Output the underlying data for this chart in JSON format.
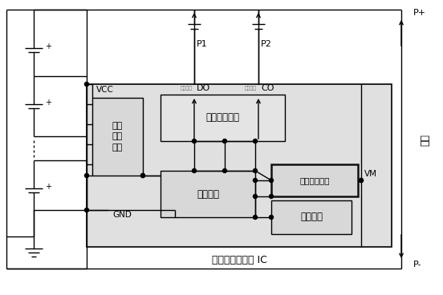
{
  "bg_color": "#ffffff",
  "lc": "#000000",
  "gray_light": "#e0e0e0",
  "gray_mid": "#cccccc",
  "gray_dark": "#555555",
  "title": "多节锂电池保护 IC",
  "lbl_VCC": "VCC",
  "lbl_GND": "GND",
  "lbl_P1": "P1",
  "lbl_P2": "P2",
  "lbl_DO": "DO",
  "lbl_CO": "CO",
  "lbl_VM": "VM",
  "lbl_Pplus": "P+",
  "lbl_Pminus": "P-",
  "lbl_output": "输出",
  "lbl_logic": "逻辑控制电路",
  "lbl_compare": "比较电路",
  "lbl_ref": "基准电路",
  "lbl_vs1": "电压\n采样\n电路",
  "lbl_vs2": "电压采样电路",
  "lbl_discharge": "放电控制",
  "lbl_charge": "充电控制",
  "figsize": [
    5.52,
    3.68
  ],
  "dpi": 100
}
